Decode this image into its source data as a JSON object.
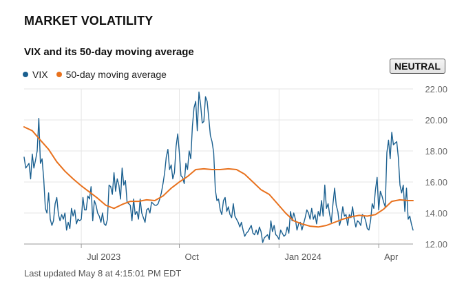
{
  "header": {
    "title": "MARKET VOLATILITY",
    "subtitle": "VIX and its 50-day moving average"
  },
  "badge": {
    "label": "NEUTRAL"
  },
  "footer": {
    "text": "Last updated May 8 at 4:15:01 PM EDT"
  },
  "colors": {
    "vix": "#1a5f8f",
    "ma": "#e8711d",
    "grid": "#e6e6e6",
    "axis": "#999999"
  },
  "chart_data": {
    "type": "line",
    "title": "VIX and its 50-day moving average",
    "xlabel": "",
    "ylabel": "",
    "ylim": [
      12,
      22
    ],
    "yticks": [
      "12.00",
      "14.00",
      "16.00",
      "18.00",
      "20.00",
      "22.00"
    ],
    "xlim": [
      0,
      238
    ],
    "xticks": [
      {
        "label": "Jul 2023",
        "x": 35
      },
      {
        "label": "Oct",
        "x": 95
      },
      {
        "label": "Jan 2024",
        "x": 156
      },
      {
        "label": "Apr",
        "x": 217
      }
    ],
    "legend_position": "top-left",
    "series": [
      {
        "name": "VIX",
        "values": [
          [
            0,
            17.6
          ],
          [
            1,
            16.9
          ],
          [
            3,
            17.2
          ],
          [
            4,
            16.2
          ],
          [
            5,
            17.8
          ],
          [
            6,
            16.9
          ],
          [
            7,
            17.4
          ],
          [
            8,
            18.0
          ],
          [
            9,
            20.1
          ],
          [
            10,
            17.2
          ],
          [
            11,
            17.5
          ],
          [
            12,
            16.2
          ],
          [
            13,
            14.3
          ],
          [
            14,
            14.0
          ],
          [
            15,
            15.3
          ],
          [
            16,
            13.6
          ],
          [
            17,
            13.2
          ],
          [
            18,
            13.5
          ],
          [
            19,
            14.6
          ],
          [
            20,
            15.0
          ],
          [
            21,
            13.9
          ],
          [
            22,
            13.5
          ],
          [
            23,
            13.9
          ],
          [
            24,
            13.6
          ],
          [
            25,
            14.0
          ],
          [
            26,
            12.9
          ],
          [
            27,
            13.4
          ],
          [
            28,
            13.0
          ],
          [
            29,
            14.3
          ],
          [
            30,
            13.8
          ],
          [
            31,
            14.2
          ],
          [
            32,
            13.3
          ],
          [
            33,
            13.6
          ],
          [
            34,
            13.5
          ],
          [
            35,
            13.6
          ],
          [
            36,
            15.0
          ],
          [
            37,
            14.2
          ],
          [
            38,
            14.2
          ],
          [
            39,
            15.1
          ],
          [
            40,
            14.9
          ],
          [
            41,
            15.7
          ],
          [
            42,
            13.5
          ],
          [
            43,
            14.8
          ],
          [
            44,
            14.5
          ],
          [
            45,
            14.0
          ],
          [
            46,
            13.8
          ],
          [
            47,
            13.4
          ],
          [
            48,
            14.0
          ],
          [
            49,
            13.3
          ],
          [
            50,
            13.2
          ],
          [
            51,
            13.6
          ],
          [
            52,
            15.8
          ],
          [
            53,
            15.7
          ],
          [
            54,
            15.2
          ],
          [
            55,
            16.6
          ],
          [
            56,
            15.4
          ],
          [
            57,
            16.2
          ],
          [
            58,
            15.8
          ],
          [
            59,
            14.9
          ],
          [
            60,
            16.9
          ],
          [
            61,
            15.8
          ],
          [
            62,
            16.1
          ],
          [
            63,
            14.7
          ],
          [
            64,
            14.6
          ],
          [
            65,
            14.5
          ],
          [
            66,
            13.5
          ],
          [
            67,
            14.9
          ],
          [
            68,
            13.9
          ],
          [
            69,
            14.1
          ],
          [
            70,
            13.6
          ],
          [
            71,
            14.9
          ],
          [
            72,
            14.0
          ],
          [
            73,
            13.7
          ],
          [
            74,
            13.4
          ],
          [
            75,
            14.2
          ],
          [
            76,
            14.3
          ],
          [
            77,
            14.0
          ],
          [
            78,
            14.7
          ],
          [
            79,
            14.6
          ],
          [
            80,
            14.5
          ],
          [
            81,
            14.5
          ],
          [
            82,
            14.6
          ],
          [
            83,
            14.9
          ],
          [
            84,
            15.3
          ],
          [
            85,
            15.9
          ],
          [
            86,
            16.6
          ],
          [
            87,
            17.6
          ],
          [
            88,
            18.1
          ],
          [
            89,
            16.8
          ],
          [
            90,
            17.1
          ],
          [
            91,
            16.2
          ],
          [
            92,
            16.6
          ],
          [
            93,
            18.3
          ],
          [
            94,
            19.1
          ],
          [
            95,
            17.9
          ],
          [
            96,
            16.4
          ],
          [
            97,
            16.3
          ],
          [
            98,
            15.9
          ],
          [
            99,
            17.2
          ],
          [
            100,
            16.8
          ],
          [
            101,
            18.0
          ],
          [
            102,
            17.5
          ],
          [
            103,
            19.6
          ],
          [
            104,
            20.8
          ],
          [
            105,
            21.2
          ],
          [
            106,
            19.3
          ],
          [
            107,
            21.8
          ],
          [
            108,
            21.0
          ],
          [
            109,
            19.8
          ],
          [
            110,
            19.9
          ],
          [
            111,
            21.5
          ],
          [
            112,
            21.2
          ],
          [
            113,
            20.1
          ],
          [
            114,
            19.0
          ],
          [
            115,
            18.6
          ],
          [
            116,
            17.9
          ],
          [
            117,
            15.5
          ],
          [
            118,
            14.8
          ],
          [
            119,
            14.9
          ],
          [
            120,
            14.2
          ],
          [
            121,
            13.9
          ],
          [
            122,
            14.8
          ],
          [
            123,
            15.0
          ],
          [
            124,
            14.1
          ],
          [
            125,
            14.4
          ],
          [
            126,
            13.9
          ],
          [
            127,
            13.7
          ],
          [
            128,
            14.6
          ],
          [
            129,
            13.8
          ],
          [
            130,
            13.6
          ],
          [
            131,
            13.4
          ],
          [
            132,
            13.1
          ],
          [
            133,
            13.4
          ],
          [
            134,
            12.9
          ],
          [
            135,
            12.5
          ],
          [
            136,
            12.7
          ],
          [
            137,
            12.8
          ],
          [
            138,
            13.0
          ],
          [
            139,
            13.2
          ],
          [
            140,
            12.7
          ],
          [
            141,
            12.6
          ],
          [
            142,
            12.9
          ],
          [
            143,
            12.6
          ],
          [
            144,
            13.1
          ],
          [
            145,
            12.8
          ],
          [
            146,
            12.1
          ],
          [
            147,
            12.4
          ],
          [
            148,
            12.5
          ],
          [
            149,
            12.6
          ],
          [
            150,
            12.3
          ],
          [
            151,
            13.5
          ],
          [
            152,
            12.8
          ],
          [
            153,
            13.2
          ],
          [
            154,
            12.6
          ],
          [
            155,
            12.5
          ],
          [
            156,
            12.3
          ],
          [
            157,
            12.9
          ],
          [
            158,
            12.7
          ],
          [
            159,
            12.5
          ],
          [
            160,
            12.6
          ],
          [
            161,
            13.1
          ],
          [
            162,
            12.7
          ],
          [
            163,
            14.1
          ],
          [
            164,
            13.5
          ],
          [
            165,
            14.0
          ],
          [
            166,
            13.6
          ],
          [
            167,
            12.9
          ],
          [
            168,
            13.3
          ],
          [
            169,
            13.4
          ],
          [
            170,
            12.9
          ],
          [
            171,
            13.3
          ],
          [
            172,
            13.7
          ],
          [
            173,
            14.2
          ],
          [
            174,
            14.0
          ],
          [
            175,
            13.6
          ],
          [
            176,
            14.3
          ],
          [
            177,
            13.6
          ],
          [
            178,
            13.9
          ],
          [
            179,
            13.3
          ],
          [
            180,
            14.1
          ],
          [
            181,
            13.8
          ],
          [
            182,
            14.8
          ],
          [
            183,
            13.8
          ],
          [
            184,
            15.8
          ],
          [
            185,
            14.3
          ],
          [
            186,
            14.6
          ],
          [
            187,
            13.9
          ],
          [
            188,
            13.4
          ],
          [
            189,
            14.6
          ],
          [
            190,
            15.6
          ],
          [
            191,
            14.5
          ],
          [
            192,
            14.1
          ],
          [
            193,
            13.2
          ],
          [
            194,
            13.6
          ],
          [
            195,
            14.4
          ],
          [
            196,
            13.8
          ],
          [
            197,
            13.9
          ],
          [
            198,
            13.2
          ],
          [
            199,
            13.9
          ],
          [
            200,
            13.7
          ],
          [
            201,
            14.4
          ],
          [
            202,
            13.6
          ],
          [
            203,
            13.1
          ],
          [
            204,
            13.5
          ],
          [
            205,
            13.4
          ],
          [
            206,
            13.2
          ],
          [
            207,
            13.9
          ],
          [
            208,
            13.8
          ],
          [
            209,
            13.5
          ],
          [
            210,
            13.0
          ],
          [
            211,
            12.9
          ],
          [
            212,
            13.5
          ],
          [
            213,
            14.6
          ],
          [
            214,
            14.3
          ],
          [
            215,
            15.5
          ],
          [
            216,
            16.3
          ],
          [
            217,
            14.2
          ],
          [
            218,
            15.4
          ],
          [
            219,
            15.1
          ],
          [
            220,
            14.7
          ],
          [
            221,
            14.4
          ],
          [
            222,
            17.9
          ],
          [
            223,
            18.7
          ],
          [
            224,
            17.5
          ],
          [
            225,
            19.2
          ],
          [
            226,
            18.4
          ],
          [
            227,
            18.5
          ],
          [
            228,
            18.6
          ],
          [
            229,
            17.6
          ],
          [
            230,
            15.8
          ],
          [
            231,
            15.3
          ],
          [
            232,
            15.8
          ],
          [
            233,
            14.1
          ],
          [
            234,
            15.6
          ],
          [
            235,
            13.6
          ],
          [
            236,
            13.8
          ],
          [
            237,
            13.3
          ],
          [
            238,
            12.9
          ]
        ]
      },
      {
        "name": "50-day moving average",
        "values": [
          [
            0,
            19.55
          ],
          [
            5,
            19.3
          ],
          [
            10,
            18.7
          ],
          [
            15,
            18.1
          ],
          [
            20,
            17.3
          ],
          [
            25,
            16.7
          ],
          [
            30,
            16.2
          ],
          [
            35,
            15.75
          ],
          [
            40,
            15.35
          ],
          [
            45,
            14.95
          ],
          [
            50,
            14.5
          ],
          [
            55,
            14.3
          ],
          [
            60,
            14.55
          ],
          [
            65,
            14.75
          ],
          [
            70,
            14.75
          ],
          [
            75,
            14.85
          ],
          [
            80,
            14.8
          ],
          [
            85,
            15.1
          ],
          [
            90,
            15.6
          ],
          [
            95,
            16.0
          ],
          [
            100,
            16.35
          ],
          [
            105,
            16.8
          ],
          [
            110,
            16.85
          ],
          [
            115,
            16.8
          ],
          [
            120,
            16.8
          ],
          [
            125,
            16.85
          ],
          [
            130,
            16.8
          ],
          [
            135,
            16.5
          ],
          [
            140,
            16.0
          ],
          [
            145,
            15.5
          ],
          [
            150,
            15.2
          ],
          [
            155,
            14.6
          ],
          [
            160,
            14.0
          ],
          [
            165,
            13.5
          ],
          [
            170,
            13.3
          ],
          [
            175,
            13.15
          ],
          [
            180,
            13.1
          ],
          [
            185,
            13.2
          ],
          [
            190,
            13.4
          ],
          [
            195,
            13.6
          ],
          [
            200,
            13.75
          ],
          [
            205,
            13.85
          ],
          [
            210,
            13.8
          ],
          [
            215,
            13.9
          ],
          [
            220,
            14.25
          ],
          [
            225,
            14.75
          ],
          [
            230,
            14.85
          ],
          [
            235,
            14.8
          ],
          [
            238,
            14.8
          ]
        ]
      }
    ]
  }
}
